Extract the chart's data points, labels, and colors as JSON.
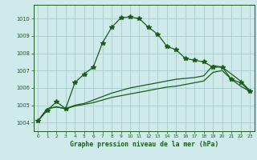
{
  "xlabel": "Graphe pression niveau de la mer (hPa)",
  "background_color": "#ceeaea",
  "grid_color": "#aacccc",
  "line_color": "#1a5c1a",
  "xlim": [
    -0.5,
    23.5
  ],
  "ylim": [
    1003.5,
    1010.8
  ],
  "xticks": [
    0,
    1,
    2,
    3,
    4,
    5,
    6,
    7,
    8,
    9,
    10,
    11,
    12,
    13,
    14,
    15,
    16,
    17,
    18,
    19,
    20,
    21,
    22,
    23
  ],
  "yticks": [
    1004,
    1005,
    1006,
    1007,
    1008,
    1009,
    1010
  ],
  "series1": [
    1004.1,
    1004.7,
    1005.2,
    1004.8,
    1006.3,
    1006.8,
    1007.2,
    1008.6,
    1009.5,
    1010.05,
    1010.1,
    1010.0,
    1009.5,
    1009.1,
    1008.4,
    1008.2,
    1007.7,
    1007.6,
    1007.5,
    1007.2,
    1007.2,
    1006.5,
    1006.3,
    1005.8
  ],
  "series2": [
    1004.1,
    1004.8,
    1004.9,
    1004.8,
    1005.0,
    1005.1,
    1005.3,
    1005.5,
    1005.7,
    1005.85,
    1006.0,
    1006.1,
    1006.2,
    1006.3,
    1006.4,
    1006.5,
    1006.55,
    1006.6,
    1006.7,
    1007.3,
    1007.2,
    1006.8,
    1006.4,
    1005.85
  ],
  "series3": [
    1004.1,
    1004.8,
    1004.9,
    1004.8,
    1004.95,
    1005.05,
    1005.15,
    1005.3,
    1005.45,
    1005.55,
    1005.65,
    1005.75,
    1005.85,
    1005.95,
    1006.05,
    1006.1,
    1006.2,
    1006.3,
    1006.4,
    1006.9,
    1007.0,
    1006.5,
    1006.1,
    1005.8
  ]
}
